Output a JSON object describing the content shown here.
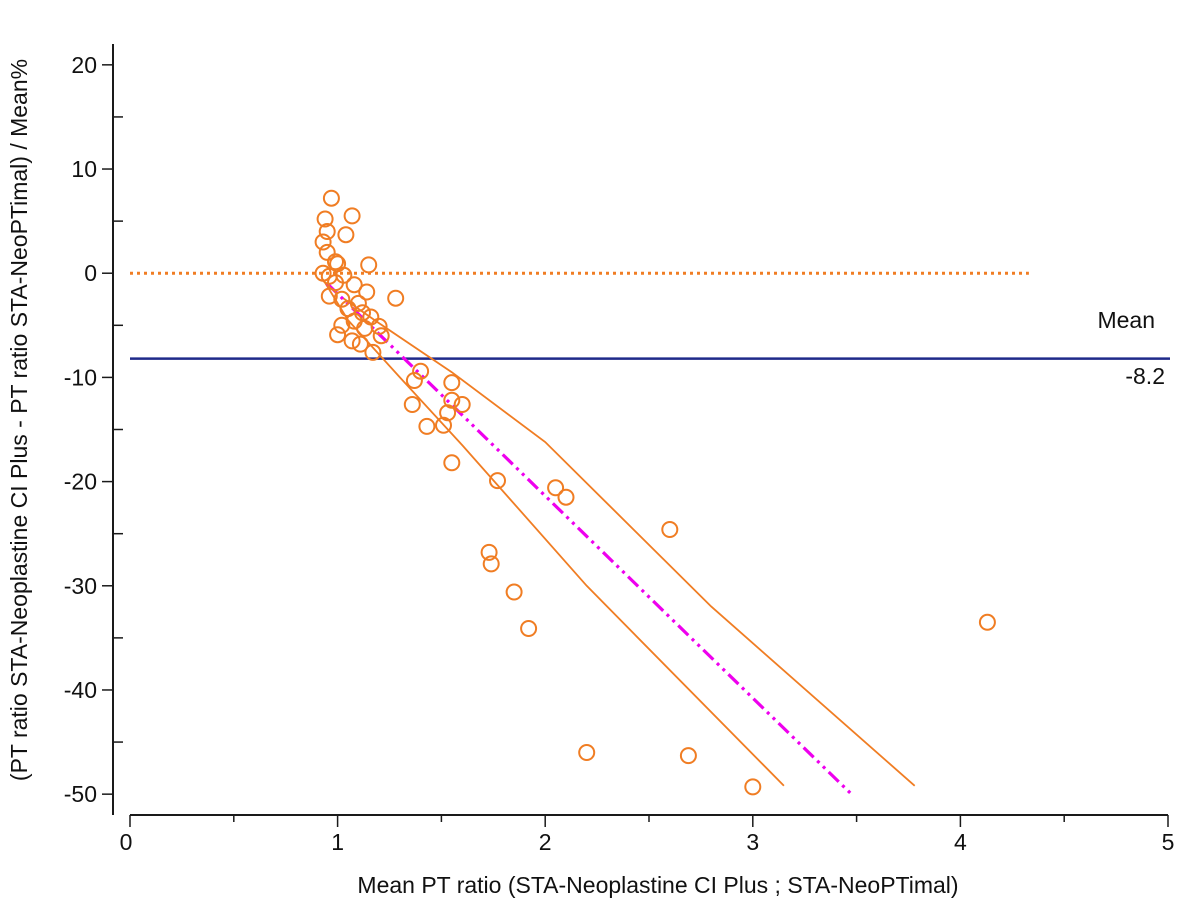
{
  "chart_data": {
    "type": "scatter",
    "xlabel": "Mean PT ratio (STA-Neoplastine CI Plus ; STA-NeoPTimal)",
    "ylabel": "(PT ratio STA-Neoplastine CI Plus - PT ratio STA-NeoPTimal) / Mean%",
    "xlim": [
      0,
      5
    ],
    "ylim": [
      -52,
      22
    ],
    "x_ticks": [
      0,
      1,
      2,
      3,
      4,
      5
    ],
    "y_ticks": [
      20,
      10,
      0,
      -10,
      -20,
      -30,
      -40,
      -50
    ],
    "grid": false,
    "points": [
      {
        "x": 0.97,
        "y": 7.2
      },
      {
        "x": 1.07,
        "y": 5.5
      },
      {
        "x": 0.94,
        "y": 5.2
      },
      {
        "x": 0.95,
        "y": 4.0
      },
      {
        "x": 1.04,
        "y": 3.7
      },
      {
        "x": 0.93,
        "y": 3.0
      },
      {
        "x": 0.95,
        "y": 2.0
      },
      {
        "x": 0.99,
        "y": 1.1
      },
      {
        "x": 1.0,
        "y": 0.9
      },
      {
        "x": 1.15,
        "y": 0.8
      },
      {
        "x": 0.93,
        "y": 0.0
      },
      {
        "x": 0.96,
        "y": -0.3
      },
      {
        "x": 1.03,
        "y": -0.2
      },
      {
        "x": 0.99,
        "y": -0.9
      },
      {
        "x": 1.08,
        "y": -1.1
      },
      {
        "x": 1.14,
        "y": -1.8
      },
      {
        "x": 0.96,
        "y": -2.2
      },
      {
        "x": 1.02,
        "y": -2.5
      },
      {
        "x": 1.28,
        "y": -2.4
      },
      {
        "x": 1.1,
        "y": -2.9
      },
      {
        "x": 1.05,
        "y": -3.4
      },
      {
        "x": 1.12,
        "y": -3.8
      },
      {
        "x": 1.16,
        "y": -4.2
      },
      {
        "x": 1.08,
        "y": -4.6
      },
      {
        "x": 1.02,
        "y": -5.0
      },
      {
        "x": 1.13,
        "y": -5.3
      },
      {
        "x": 1.2,
        "y": -5.1
      },
      {
        "x": 1.0,
        "y": -5.9
      },
      {
        "x": 1.21,
        "y": -6.0
      },
      {
        "x": 1.07,
        "y": -6.5
      },
      {
        "x": 1.11,
        "y": -6.8
      },
      {
        "x": 1.17,
        "y": -7.6
      },
      {
        "x": 1.4,
        "y": -9.4
      },
      {
        "x": 1.37,
        "y": -10.3
      },
      {
        "x": 1.55,
        "y": -10.5
      },
      {
        "x": 1.55,
        "y": -12.2
      },
      {
        "x": 1.6,
        "y": -12.6
      },
      {
        "x": 1.36,
        "y": -12.6
      },
      {
        "x": 1.53,
        "y": -13.4
      },
      {
        "x": 1.51,
        "y": -14.6
      },
      {
        "x": 1.43,
        "y": -14.7
      },
      {
        "x": 1.55,
        "y": -18.2
      },
      {
        "x": 1.77,
        "y": -19.9
      },
      {
        "x": 2.05,
        "y": -20.6
      },
      {
        "x": 2.1,
        "y": -21.5
      },
      {
        "x": 2.6,
        "y": -24.6
      },
      {
        "x": 1.73,
        "y": -26.8
      },
      {
        "x": 1.74,
        "y": -27.9
      },
      {
        "x": 1.85,
        "y": -30.6
      },
      {
        "x": 1.92,
        "y": -34.1
      },
      {
        "x": 4.13,
        "y": -33.5
      },
      {
        "x": 2.2,
        "y": -46.0
      },
      {
        "x": 2.69,
        "y": -46.3
      },
      {
        "x": 3.0,
        "y": -49.3
      }
    ],
    "mean": -8.2,
    "mean_label": "Mean",
    "mean_value_label": "-8.2",
    "zero_line": {
      "y": 0,
      "x_range": [
        0,
        4.33
      ]
    },
    "regression_line": {
      "x": [
        0.95,
        3.47
      ],
      "y": [
        -1.0,
        -49.9
      ]
    },
    "confidence_upper": {
      "x": [
        1.02,
        1.2,
        1.55,
        2.0,
        2.8,
        3.78
      ],
      "y": [
        -2.3,
        -4.8,
        -9.5,
        -16.2,
        -32.0,
        -49.2
      ]
    },
    "confidence_lower": {
      "x": [
        0.93,
        1.05,
        1.3,
        1.6,
        2.2,
        3.15
      ],
      "y": [
        -0.6,
        -4.5,
        -10.0,
        -16.5,
        -30.0,
        -49.2
      ]
    },
    "colors": {
      "axes": "#1a1a1a",
      "points": "#f07d23",
      "zero_line": "#f07d23",
      "mean_line": "#1f2a8a",
      "regression": "#ee00ee",
      "confidence": "#f07d23"
    }
  }
}
